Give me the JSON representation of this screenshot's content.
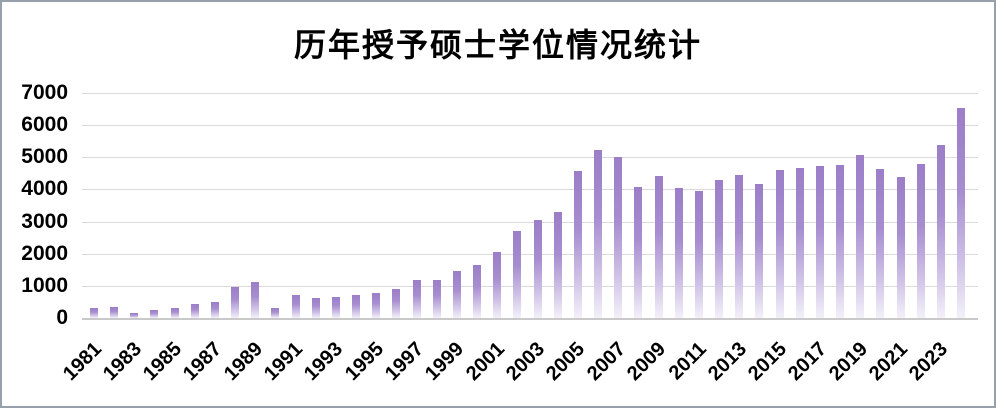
{
  "frame": {
    "border_color": "#96a1ab",
    "background": "#ffffff"
  },
  "chart_data": {
    "type": "bar",
    "title": "历年授予硕士学位情况统计",
    "xlabel": "",
    "ylabel": "",
    "x": [
      "1981",
      "1982",
      "1983",
      "1984",
      "1985",
      "1986",
      "1987",
      "1988",
      "1989",
      "1990",
      "1991",
      "1992",
      "1993",
      "1994",
      "1995",
      "1996",
      "1997",
      "1998",
      "1999",
      "2000",
      "2001",
      "2002",
      "2003",
      "2004",
      "2005",
      "2006",
      "2007",
      "2008",
      "2009",
      "2010",
      "2011",
      "2012",
      "2013",
      "2014",
      "2015",
      "2016",
      "2017",
      "2018",
      "2019",
      "2020",
      "2021",
      "2022",
      "2023",
      "2024"
    ],
    "values": [
      310,
      340,
      160,
      250,
      300,
      440,
      510,
      970,
      1130,
      320,
      720,
      610,
      640,
      730,
      790,
      900,
      1170,
      1180,
      1460,
      1640,
      2050,
      2700,
      3060,
      3290,
      4560,
      5230,
      5000,
      4090,
      4420,
      4060,
      3950,
      4300,
      4440,
      4170,
      4600,
      4660,
      4740,
      4770,
      5060,
      4640,
      4380,
      4800,
      5390,
      6520
    ],
    "x_tick_labels": [
      "1981",
      "1983",
      "1985",
      "1987",
      "1989",
      "1991",
      "1993",
      "1995",
      "1997",
      "1999",
      "2001",
      "2003",
      "2005",
      "2007",
      "2009",
      "2011",
      "2013",
      "2015",
      "2017",
      "2019",
      "2021",
      "2023"
    ],
    "x_tick_every": 2,
    "y_ticks": [
      0,
      1000,
      2000,
      3000,
      4000,
      5000,
      6000,
      7000
    ],
    "ylim": [
      0,
      7000
    ],
    "grid": "horizontal",
    "legend": "none",
    "colors": {
      "bar_gradient_top": "#9b7ec7",
      "bar_gradient_upper_mid": "#a78dd0",
      "bar_gradient_lower_mid": "#cdbfe5",
      "bar_gradient_bottom": "#f3f0f9",
      "gridline": "#dadada",
      "axis_line": "#c9c9c9",
      "text": "#000000"
    }
  }
}
